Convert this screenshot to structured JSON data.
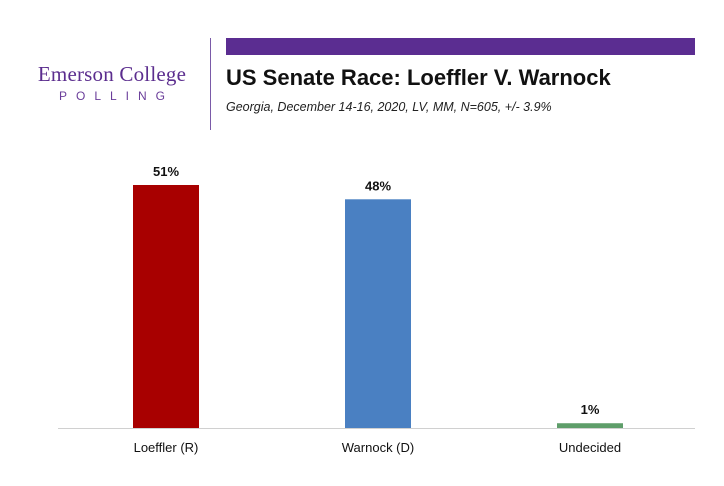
{
  "logo": {
    "name": "Emerson College",
    "sub": "POLLING"
  },
  "header": {
    "title": "US Senate Race: Loeffler V. Warnock",
    "subtitle": "Georgia, December 14-16, 2020, LV, MM, N=605, +/- 3.9%"
  },
  "colors": {
    "brand_purple": "#5b2d91",
    "republican": "#a80000",
    "democrat": "#4a80c2",
    "undecided": "#5e9e6a"
  },
  "chart_data": {
    "type": "bar",
    "title": "US Senate Race: Loeffler V. Warnock",
    "subtitle": "Georgia, December 14-16, 2020, LV, MM, N=605, +/- 3.9%",
    "categories": [
      "Loeffler (R)",
      "Warnock (D)",
      "Undecided"
    ],
    "values": [
      51,
      48,
      1
    ],
    "data_labels": [
      "51%",
      "48%",
      "1%"
    ],
    "colors": [
      "#a80000",
      "#4a80c2",
      "#5e9e6a"
    ],
    "xlabel": "",
    "ylabel": "",
    "ylim": [
      0,
      51
    ],
    "grid": false,
    "legend": "none"
  }
}
